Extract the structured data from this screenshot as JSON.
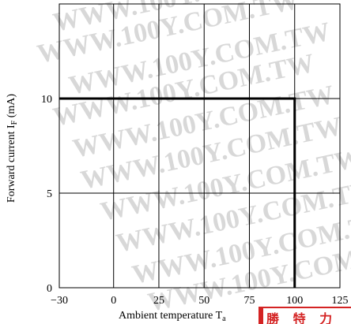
{
  "chart_data": {
    "type": "line",
    "title": "",
    "xlabel_main": "Ambient temperature T",
    "xlabel_sub": "a",
    "ylabel_main": "Forward current I",
    "ylabel_sub": "F",
    "ylabel_unit": " (mA)",
    "xlim": [
      -30,
      125
    ],
    "ylim": [
      0,
      15
    ],
    "xticks": [
      -30,
      0,
      25,
      50,
      75,
      100,
      125
    ],
    "xtick_labels": [
      "−30",
      "0",
      "25",
      "50",
      "75",
      "100",
      "125"
    ],
    "yticks": [
      0,
      5,
      10
    ],
    "ytick_labels": [
      "0",
      "5",
      "10"
    ],
    "grid": true,
    "series": [
      {
        "x": [
          -30,
          100,
          100
        ],
        "y": [
          10,
          10,
          0
        ]
      }
    ]
  },
  "watermark": "WWW.100Y.COM.TW",
  "stamp_text": "勝 特 力"
}
